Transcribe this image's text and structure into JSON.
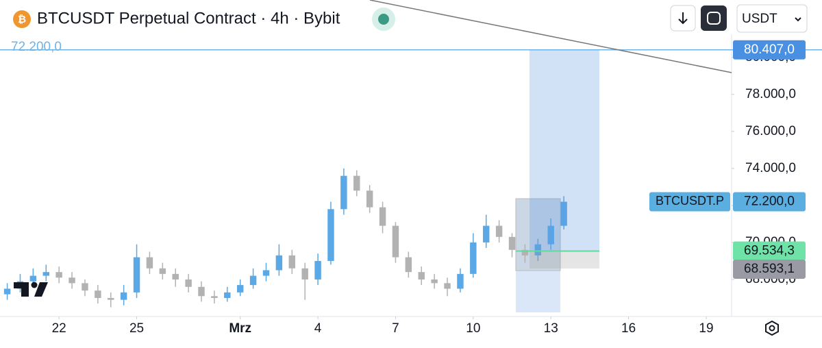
{
  "chart_data": {
    "type": "candlestick",
    "title": "BTCUSDT Perpetual Contract · 4h · Bybit",
    "currency": "USDT",
    "symbol_label": "BTCUSDT.P",
    "up_color": "#5aa9e6",
    "down_color": "#b2b2b2",
    "x": [
      -2,
      -1.5,
      -1,
      -0.5,
      0,
      0.5,
      1,
      1.5,
      2,
      2.5,
      3,
      3.5,
      4,
      4.5,
      5,
      5.5,
      6,
      6.5,
      7,
      7.5,
      8,
      8.5,
      9,
      9.5,
      10,
      10.5,
      11,
      11.5,
      12,
      12.5,
      13,
      13.5,
      14,
      14.5,
      15,
      15.5,
      16,
      16.5,
      17,
      17.5,
      18,
      18.5,
      19,
      19.5
    ],
    "open": [
      67200,
      67500,
      67900,
      68200,
      68400,
      68100,
      67800,
      67400,
      67000,
      66900,
      67300,
      69200,
      68600,
      68300,
      68000,
      67600,
      67100,
      67000,
      67300,
      67700,
      68200,
      68500,
      69300,
      68600,
      68000,
      69000,
      71800,
      73600,
      72800,
      71900,
      70900,
      69200,
      68400,
      68000,
      67800,
      67500,
      68300,
      70000,
      70900,
      70300,
      69600,
      69300,
      69900,
      70900
    ],
    "high": [
      67800,
      68300,
      68600,
      68800,
      68700,
      68400,
      68000,
      67700,
      67300,
      67700,
      69900,
      69500,
      68900,
      68600,
      68300,
      67900,
      67400,
      67600,
      68000,
      68600,
      68900,
      69900,
      69600,
      68900,
      69400,
      72200,
      74000,
      73900,
      73100,
      72200,
      71100,
      69500,
      68700,
      68300,
      68100,
      68600,
      70500,
      71500,
      71200,
      70500,
      69900,
      70200,
      71300,
      72500
    ],
    "low": [
      66900,
      67300,
      67600,
      67900,
      67800,
      67500,
      67100,
      66700,
      66500,
      66600,
      67000,
      68300,
      68000,
      67600,
      67300,
      66800,
      66700,
      66800,
      67100,
      67500,
      67900,
      68200,
      68300,
      66900,
      67700,
      68800,
      71500,
      72500,
      71600,
      70500,
      68900,
      68100,
      67700,
      67500,
      67100,
      67300,
      68100,
      69700,
      70000,
      69200,
      68900,
      69000,
      69600,
      70700
    ],
    "close": [
      67500,
      67900,
      68200,
      68400,
      68100,
      67800,
      67400,
      67000,
      66900,
      67300,
      69200,
      68600,
      68300,
      68000,
      67600,
      67100,
      67000,
      67300,
      67700,
      68200,
      68500,
      69300,
      68600,
      68000,
      69000,
      71800,
      73600,
      72800,
      71900,
      70900,
      69200,
      68400,
      68000,
      67800,
      67500,
      68300,
      70000,
      70900,
      70300,
      69600,
      69300,
      69900,
      70900,
      72200
    ],
    "xlim": [
      -2.28,
      25.98
    ],
    "xticks": [
      {
        "value": 0,
        "label": "22"
      },
      {
        "value": 3,
        "label": "25"
      },
      {
        "value": 7,
        "label": "Mrz"
      },
      {
        "value": 10,
        "label": "4"
      },
      {
        "value": 13,
        "label": "7"
      },
      {
        "value": 16,
        "label": "10"
      },
      {
        "value": 19,
        "label": "13"
      },
      {
        "value": 22,
        "label": "16"
      },
      {
        "value": 25,
        "label": "19"
      }
    ],
    "ylim": [
      66000,
      83100
    ],
    "yticks": [
      {
        "value": 68000,
        "label": "68.000,0"
      },
      {
        "value": 70000,
        "label": "70.000,0"
      },
      {
        "value": 72000,
        "label": "72.000,0"
      },
      {
        "value": 74000,
        "label": "74.000,0"
      },
      {
        "value": 76000,
        "label": "76.000,0"
      },
      {
        "value": 78000,
        "label": "78.000,0"
      },
      {
        "value": 80000,
        "label": "80.000,0"
      }
    ],
    "current_price": {
      "value": 72200,
      "label": "72.200,0"
    },
    "position": {
      "target": {
        "value": 80407,
        "label": "80.407,0"
      },
      "entry": {
        "value": 69534.3,
        "label": "69.534,3"
      },
      "stop": {
        "value": 68593.1,
        "label": "68.593,1"
      }
    }
  }
}
